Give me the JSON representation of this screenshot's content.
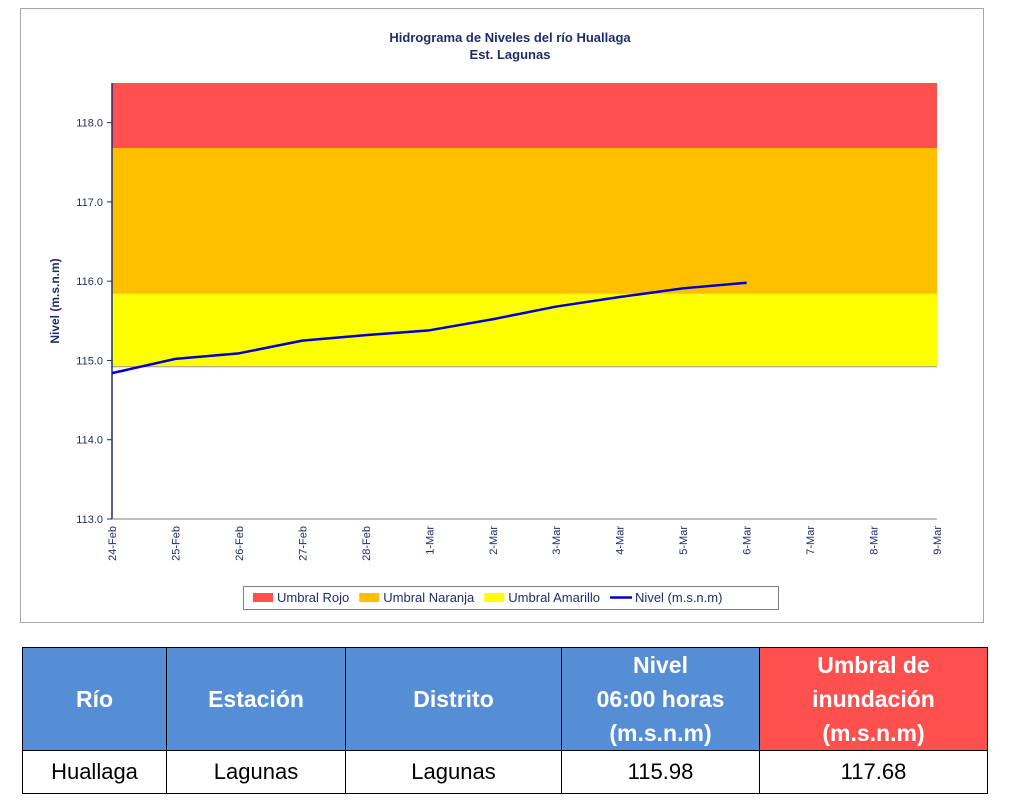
{
  "chart_data": {
    "type": "line",
    "title": "Hidrograma de Niveles del río Huallaga",
    "subtitle": "Est. Lagunas",
    "y_label": "Nivel (m.s.n.m)",
    "categories": [
      "24-Feb",
      "25-Feb",
      "26-Feb",
      "27-Feb",
      "28-Feb",
      "1-Mar",
      "2-Mar",
      "3-Mar",
      "4-Mar",
      "5-Mar",
      "6-Mar",
      "7-Mar",
      "8-Mar",
      "9-Mar"
    ],
    "thresholds": [
      {
        "name": "Umbral Rojo",
        "color": "#ff5050",
        "value": 117.68
      },
      {
        "name": "Umbral Naranja",
        "color": "#ffc000",
        "value": 115.84
      },
      {
        "name": "Umbral Amarillo",
        "color": "#ffff00",
        "value": 114.92
      }
    ],
    "series": [
      {
        "name": "Nivel (m.s.n.m)",
        "color": "#0000cc",
        "values": [
          114.84,
          115.02,
          115.09,
          115.25,
          115.32,
          115.38,
          115.52,
          115.68,
          115.8,
          115.91,
          115.98,
          null,
          null,
          null
        ]
      }
    ],
    "ylim": [
      113,
      118.5
    ],
    "yticks": [
      {
        "value": 113,
        "label": "113.0"
      },
      {
        "value": 114,
        "label": "114.0"
      },
      {
        "value": 115,
        "label": "115.0"
      },
      {
        "value": 116,
        "label": "116.0"
      },
      {
        "value": 117,
        "label": "117.0"
      },
      {
        "value": 118,
        "label": "118.0"
      }
    ],
    "legend": "bottom"
  },
  "table": {
    "header": [
      [
        "Río"
      ],
      [
        "Estación"
      ],
      [
        "Distrito"
      ],
      [
        "Nivel",
        "06:00 horas",
        "(m.s.n.m)"
      ],
      [
        "Umbral de",
        "inundación",
        "(m.s.n.m)"
      ]
    ],
    "rows": [
      [
        "Huallaga",
        "Lagunas",
        "Lagunas",
        "115.98",
        "117.68"
      ]
    ]
  }
}
